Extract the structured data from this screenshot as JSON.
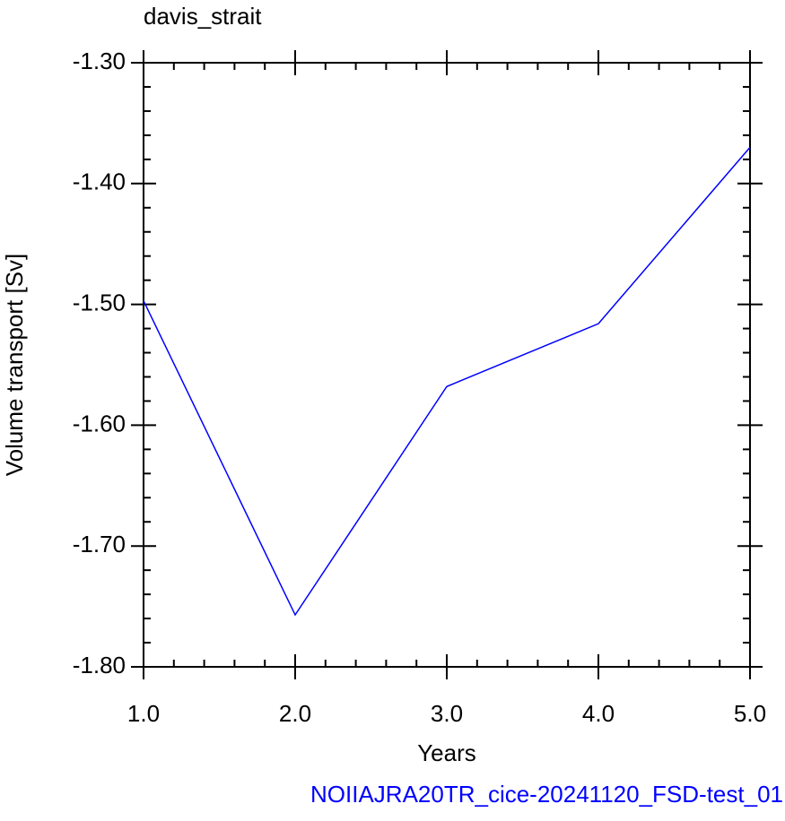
{
  "chart_data": {
    "type": "line",
    "title": "davis_strait",
    "subtitle": "NOIIAJRA20TR_cice-20241120_FSD-test_01",
    "x_label": "Years",
    "y_label": "Volume transport [Sv]",
    "x": [
      1,
      2,
      3,
      4,
      5
    ],
    "series": [
      {
        "color": "#0000ff",
        "values": [
          -1.497,
          -1.757,
          -1.568,
          -1.516,
          -1.37
        ]
      }
    ],
    "xlim": [
      1,
      5
    ],
    "xticks": [
      {
        "value": 1,
        "label": "1.0"
      },
      {
        "value": 2,
        "label": "2.0"
      },
      {
        "value": 3,
        "label": "3.0"
      },
      {
        "value": 4,
        "label": "4.0"
      },
      {
        "value": 5,
        "label": "5.0"
      }
    ],
    "ylim": [
      -1.8,
      -1.3
    ],
    "yticks": [
      {
        "value": -1.8,
        "label": "-1.80"
      },
      {
        "value": -1.7,
        "label": "-1.70"
      },
      {
        "value": -1.6,
        "label": "-1.60"
      },
      {
        "value": -1.5,
        "label": "-1.50"
      },
      {
        "value": -1.4,
        "label": "-1.40"
      },
      {
        "value": -1.3,
        "label": "-1.30"
      }
    ],
    "grid": false
  }
}
